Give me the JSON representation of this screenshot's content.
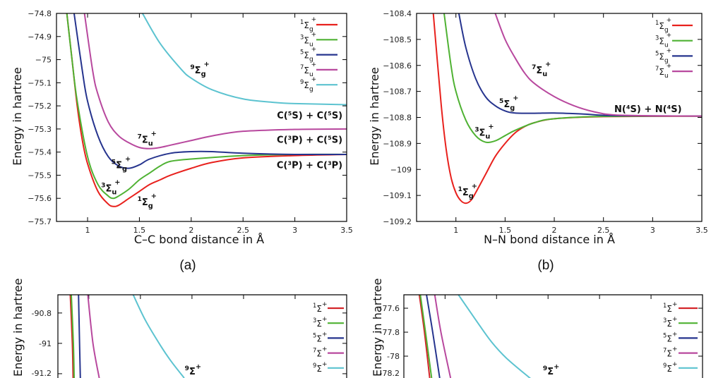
{
  "chart_data": [
    {
      "type": "line",
      "caption": "(a)",
      "xlabel": "C–C bond distance in Å",
      "ylabel": "Energy in hartree",
      "xlim": [
        0.7,
        3.5
      ],
      "ylim": [
        -75.7,
        -74.8
      ],
      "xticks": [
        {
          "v": 1,
          "label": "1"
        },
        {
          "v": 1.5,
          "label": "1.5"
        },
        {
          "v": 2,
          "label": "2"
        },
        {
          "v": 2.5,
          "label": "2.5"
        },
        {
          "v": 3,
          "label": "3"
        },
        {
          "v": 3.5,
          "label": "3.5"
        }
      ],
      "yticks": [
        {
          "v": -74.8,
          "label": "−74.8"
        },
        {
          "v": -74.9,
          "label": "−74.9"
        },
        {
          "v": -75,
          "label": "−75"
        },
        {
          "v": -75.1,
          "label": "−75.1"
        },
        {
          "v": -75.2,
          "label": "−75.2"
        },
        {
          "v": -75.3,
          "label": "−75.3"
        },
        {
          "v": -75.4,
          "label": "−75.4"
        },
        {
          "v": -75.5,
          "label": "−75.5"
        },
        {
          "v": -75.6,
          "label": "−75.6"
        },
        {
          "v": -75.7,
          "label": "−75.7"
        }
      ],
      "series": [
        {
          "term": {
            "mult": "1",
            "sym": "Σ",
            "sub": "g",
            "sup": "+"
          },
          "color": "#e8211d",
          "x": [
            0.8,
            0.85,
            0.9,
            0.95,
            1.0,
            1.1,
            1.2,
            1.25,
            1.3,
            1.4,
            1.5,
            1.6,
            1.7,
            1.8,
            2.0,
            2.2,
            2.5,
            3.0,
            3.5
          ],
          "y": [
            -74.8,
            -75.0,
            -75.2,
            -75.35,
            -75.45,
            -75.57,
            -75.625,
            -75.635,
            -75.63,
            -75.6,
            -75.57,
            -75.54,
            -75.52,
            -75.5,
            -75.47,
            -75.445,
            -75.425,
            -75.415,
            -75.41
          ]
        },
        {
          "term": {
            "mult": "3",
            "sym": "Σ",
            "sub": "u",
            "sup": "+"
          },
          "color": "#4fb233",
          "x": [
            0.8,
            0.85,
            0.9,
            1.0,
            1.1,
            1.2,
            1.25,
            1.3,
            1.4,
            1.5,
            1.6,
            1.7,
            1.8,
            2.0,
            2.5,
            3.0,
            3.5
          ],
          "y": [
            -74.8,
            -75.0,
            -75.18,
            -75.42,
            -75.54,
            -75.59,
            -75.6,
            -75.59,
            -75.56,
            -75.52,
            -75.49,
            -75.46,
            -75.44,
            -75.43,
            -75.415,
            -75.41,
            -75.41
          ]
        },
        {
          "term": {
            "mult": "5",
            "sym": "Σ",
            "sub": "g",
            "sup": "+"
          },
          "color": "#26348e",
          "x": [
            0.87,
            0.95,
            1.0,
            1.1,
            1.2,
            1.3,
            1.4,
            1.5,
            1.6,
            1.8,
            2.0,
            2.2,
            2.5,
            3.0,
            3.5
          ],
          "y": [
            -74.8,
            -75.05,
            -75.18,
            -75.33,
            -75.42,
            -75.46,
            -75.47,
            -75.455,
            -75.43,
            -75.405,
            -75.398,
            -75.398,
            -75.405,
            -75.41,
            -75.41
          ]
        },
        {
          "term": {
            "mult": "7",
            "sym": "Σ",
            "sub": "u",
            "sup": "+"
          },
          "color": "#b8489e",
          "x": [
            0.97,
            1.05,
            1.1,
            1.2,
            1.3,
            1.4,
            1.5,
            1.6,
            1.7,
            1.8,
            2.0,
            2.2,
            2.5,
            3.0,
            3.5
          ],
          "y": [
            -74.8,
            -75.05,
            -75.15,
            -75.27,
            -75.33,
            -75.36,
            -75.38,
            -75.385,
            -75.38,
            -75.37,
            -75.35,
            -75.33,
            -75.31,
            -75.302,
            -75.3
          ]
        },
        {
          "term": {
            "mult": "9",
            "sym": "Σ",
            "sub": "g",
            "sup": "+"
          },
          "color": "#5cc3d0",
          "x": [
            1.53,
            1.7,
            1.9,
            2.0,
            2.2,
            2.5,
            2.8,
            3.0,
            3.5
          ],
          "y": [
            -74.8,
            -74.93,
            -75.04,
            -75.08,
            -75.13,
            -75.17,
            -75.185,
            -75.19,
            -75.195
          ]
        }
      ],
      "annotations": [
        {
          "term": {
            "mult": "9",
            "sym": "Σ",
            "sub": "g",
            "sup": "+"
          },
          "x": 1.99,
          "y": -75.06
        },
        {
          "text": "C(⁵S) + C(⁵S)",
          "x": 3.46,
          "y": -75.255,
          "anchor": "end"
        },
        {
          "text": "C(³P) + C(⁵S)",
          "x": 3.46,
          "y": -75.36,
          "anchor": "end"
        },
        {
          "text": "C(³P) + C(³P)",
          "x": 3.46,
          "y": -75.47,
          "anchor": "end"
        },
        {
          "term": {
            "mult": "7",
            "sym": "Σ",
            "sub": "u",
            "sup": "+"
          },
          "x": 1.48,
          "y": -75.36
        },
        {
          "term": {
            "mult": "5",
            "sym": "Σ",
            "sub": "g",
            "sup": "+"
          },
          "x": 1.23,
          "y": -75.47
        },
        {
          "term": {
            "mult": "3",
            "sym": "Σ",
            "sub": "u",
            "sup": "+"
          },
          "x": 1.13,
          "y": -75.57
        },
        {
          "term": {
            "mult": "1",
            "sym": "Σ",
            "sub": "g",
            "sup": "+"
          },
          "x": 1.48,
          "y": -75.63
        }
      ],
      "legend": "top-right"
    },
    {
      "type": "line",
      "caption": "(b)",
      "xlabel": "N–N bond distance in Å",
      "ylabel": "Energy in hartree",
      "xlim": [
        0.6,
        3.5
      ],
      "ylim": [
        -109.2,
        -108.4
      ],
      "xticks": [
        {
          "v": 1,
          "label": "1"
        },
        {
          "v": 1.5,
          "label": "1.5"
        },
        {
          "v": 2,
          "label": "2"
        },
        {
          "v": 2.5,
          "label": "2.5"
        },
        {
          "v": 3,
          "label": "3"
        },
        {
          "v": 3.5,
          "label": "3.5"
        }
      ],
      "yticks": [
        {
          "v": -108.4,
          "label": "−108.4"
        },
        {
          "v": -108.5,
          "label": "−108.5"
        },
        {
          "v": -108.6,
          "label": "−108.6"
        },
        {
          "v": -108.7,
          "label": "−108.7"
        },
        {
          "v": -108.8,
          "label": "−108.8"
        },
        {
          "v": -108.9,
          "label": "−108.9"
        },
        {
          "v": -109,
          "label": "−109"
        },
        {
          "v": -109.1,
          "label": "−109.1"
        },
        {
          "v": -109.2,
          "label": "−109.2"
        }
      ],
      "series": [
        {
          "term": {
            "mult": "1",
            "sym": "Σ",
            "sub": "g",
            "sup": "+"
          },
          "color": "#e8211d",
          "x": [
            0.77,
            0.85,
            0.9,
            0.95,
            1.0,
            1.05,
            1.1,
            1.15,
            1.2,
            1.3,
            1.4,
            1.5,
            1.6,
            1.7,
            1.8,
            2.0,
            2.5,
            3.5
          ],
          "y": [
            -108.4,
            -108.75,
            -108.92,
            -109.03,
            -109.09,
            -109.12,
            -109.13,
            -109.12,
            -109.09,
            -109.02,
            -108.95,
            -108.9,
            -108.86,
            -108.835,
            -108.82,
            -108.805,
            -108.797,
            -108.795
          ]
        },
        {
          "term": {
            "mult": "3",
            "sym": "Σ",
            "sub": "u",
            "sup": "+"
          },
          "color": "#4fb233",
          "x": [
            0.88,
            0.95,
            1.0,
            1.1,
            1.2,
            1.3,
            1.4,
            1.5,
            1.6,
            1.8,
            2.0,
            2.5,
            3.5
          ],
          "y": [
            -108.4,
            -108.6,
            -108.7,
            -108.81,
            -108.87,
            -108.895,
            -108.89,
            -108.87,
            -108.85,
            -108.82,
            -108.805,
            -108.796,
            -108.795
          ]
        },
        {
          "term": {
            "mult": "5",
            "sym": "Σ",
            "sub": "g",
            "sup": "+"
          },
          "color": "#26348e",
          "x": [
            1.03,
            1.1,
            1.2,
            1.3,
            1.4,
            1.5,
            1.6,
            1.8,
            2.0,
            2.3,
            2.6,
            3.5
          ],
          "y": [
            -108.4,
            -108.53,
            -108.65,
            -108.72,
            -108.755,
            -108.775,
            -108.783,
            -108.784,
            -108.783,
            -108.787,
            -108.793,
            -108.795
          ]
        },
        {
          "term": {
            "mult": "7",
            "sym": "Σ",
            "sub": "u",
            "sup": "+"
          },
          "color": "#b8489e",
          "x": [
            1.4,
            1.5,
            1.6,
            1.7,
            1.8,
            2.0,
            2.2,
            2.4,
            2.6,
            3.0,
            3.5
          ],
          "y": [
            -108.4,
            -108.5,
            -108.57,
            -108.63,
            -108.67,
            -108.72,
            -108.755,
            -108.778,
            -108.79,
            -108.794,
            -108.795
          ]
        }
      ],
      "annotations": [
        {
          "term": {
            "mult": "7",
            "sym": "Σ",
            "sub": "u",
            "sup": "+"
          },
          "x": 1.77,
          "y": -108.63
        },
        {
          "term": {
            "mult": "5",
            "sym": "Σ",
            "sub": "g",
            "sup": "+"
          },
          "x": 1.44,
          "y": -108.76
        },
        {
          "term": {
            "mult": "3",
            "sym": "Σ",
            "sub": "u",
            "sup": "+"
          },
          "x": 1.19,
          "y": -108.87
        },
        {
          "term": {
            "mult": "1",
            "sym": "Σ",
            "sub": "g",
            "sup": "+"
          },
          "x": 1.02,
          "y": -109.1
        },
        {
          "text": "N(⁴S) + N(⁴S)",
          "x": 2.61,
          "y": -108.78,
          "anchor": "start"
        }
      ],
      "legend": "top-right"
    },
    {
      "type": "line",
      "ylabel": "Energy in hartree",
      "xlim": [
        0.7,
        3.5
      ],
      "ylim": [
        -91.6,
        -90.68
      ],
      "xticks": [
        {
          "v": 1,
          "label": ""
        },
        {
          "v": 1.5,
          "label": ""
        },
        {
          "v": 2,
          "label": ""
        },
        {
          "v": 2.5,
          "label": ""
        },
        {
          "v": 3,
          "label": ""
        }
      ],
      "yticks": [
        {
          "v": -90.8,
          "label": "-90.8"
        },
        {
          "v": -91,
          "label": "-91"
        },
        {
          "v": -91.2,
          "label": "-91.2"
        }
      ],
      "series": [
        {
          "term": {
            "mult": "1",
            "sym": "Σ",
            "sub": "",
            "sup": "+"
          },
          "color": "#d4252a",
          "x": [
            0.82,
            0.84,
            0.85
          ],
          "y": [
            -90.68,
            -91.0,
            -91.3
          ]
        },
        {
          "term": {
            "mult": "3",
            "sym": "Σ",
            "sub": "",
            "sup": "+"
          },
          "color": "#4fb233",
          "x": [
            0.83,
            0.85,
            0.86
          ],
          "y": [
            -90.68,
            -91.0,
            -91.3
          ]
        },
        {
          "term": {
            "mult": "5",
            "sym": "Σ",
            "sub": "",
            "sup": "+"
          },
          "color": "#26348e",
          "x": [
            0.9,
            0.91,
            0.92
          ],
          "y": [
            -90.68,
            -91.0,
            -91.3
          ]
        },
        {
          "term": {
            "mult": "7",
            "sym": "Σ",
            "sub": "",
            "sup": "+"
          },
          "color": "#b8489e",
          "x": [
            0.99,
            1.04,
            1.12
          ],
          "y": [
            -90.68,
            -91.0,
            -91.3
          ]
        },
        {
          "term": {
            "mult": "9",
            "sym": "Σ",
            "sub": "",
            "sup": "+"
          },
          "color": "#5cc3d0",
          "x": [
            1.43,
            1.55,
            1.7,
            1.8,
            1.95,
            2.0
          ],
          "y": [
            -90.68,
            -90.85,
            -91.02,
            -91.12,
            -91.25,
            -91.29
          ]
        }
      ],
      "annotations": [
        {
          "term": {
            "mult": "9",
            "sym": "Σ",
            "sub": "",
            "sup": "+"
          },
          "x": 1.93,
          "y": -91.23
        }
      ],
      "legend": "top-right"
    },
    {
      "type": "line",
      "ylabel": "Energy in hartree",
      "xlim": [
        0.6,
        3.5
      ],
      "ylim": [
        -78.4,
        -77.488
      ],
      "xticks": [
        {
          "v": 1,
          "label": ""
        },
        {
          "v": 1.5,
          "label": ""
        },
        {
          "v": 2,
          "label": ""
        },
        {
          "v": 2.5,
          "label": ""
        },
        {
          "v": 3,
          "label": ""
        }
      ],
      "yticks": [
        {
          "v": -77.6,
          "label": "-77.6"
        },
        {
          "v": -77.8,
          "label": "-77.8"
        },
        {
          "v": -78,
          "label": "-78"
        },
        {
          "v": -78.2,
          "label": "-78.2"
        }
      ],
      "series": [
        {
          "term": {
            "mult": "1",
            "sym": "Σ",
            "sub": "",
            "sup": "+"
          },
          "color": "#d4252a",
          "x": [
            0.75,
            0.8,
            0.86
          ],
          "y": [
            -77.488,
            -77.8,
            -78.25
          ]
        },
        {
          "term": {
            "mult": "3",
            "sym": "Σ",
            "sub": "",
            "sup": "+"
          },
          "color": "#4fb233",
          "x": [
            0.76,
            0.81,
            0.88
          ],
          "y": [
            -77.488,
            -77.8,
            -78.25
          ]
        },
        {
          "term": {
            "mult": "5",
            "sym": "Σ",
            "sub": "",
            "sup": "+"
          },
          "color": "#26348e",
          "x": [
            0.82,
            0.88,
            0.96
          ],
          "y": [
            -77.488,
            -77.8,
            -78.25
          ]
        },
        {
          "term": {
            "mult": "7",
            "sym": "Σ",
            "sub": "",
            "sup": "+"
          },
          "color": "#b8489e",
          "x": [
            0.9,
            0.96,
            1.07
          ],
          "y": [
            -77.488,
            -77.8,
            -78.25
          ]
        },
        {
          "term": {
            "mult": "9",
            "sym": "Σ",
            "sub": "",
            "sup": "+"
          },
          "color": "#5cc3d0",
          "x": [
            1.13,
            1.3,
            1.45,
            1.6,
            1.82,
            1.9
          ],
          "y": [
            -77.488,
            -77.7,
            -77.88,
            -78.02,
            -78.18,
            -78.23
          ]
        }
      ],
      "annotations": [
        {
          "term": {
            "mult": "9",
            "sym": "Σ",
            "sub": "",
            "sup": "+"
          },
          "x": 1.95,
          "y": -78.19
        }
      ],
      "legend": "top-right"
    }
  ]
}
